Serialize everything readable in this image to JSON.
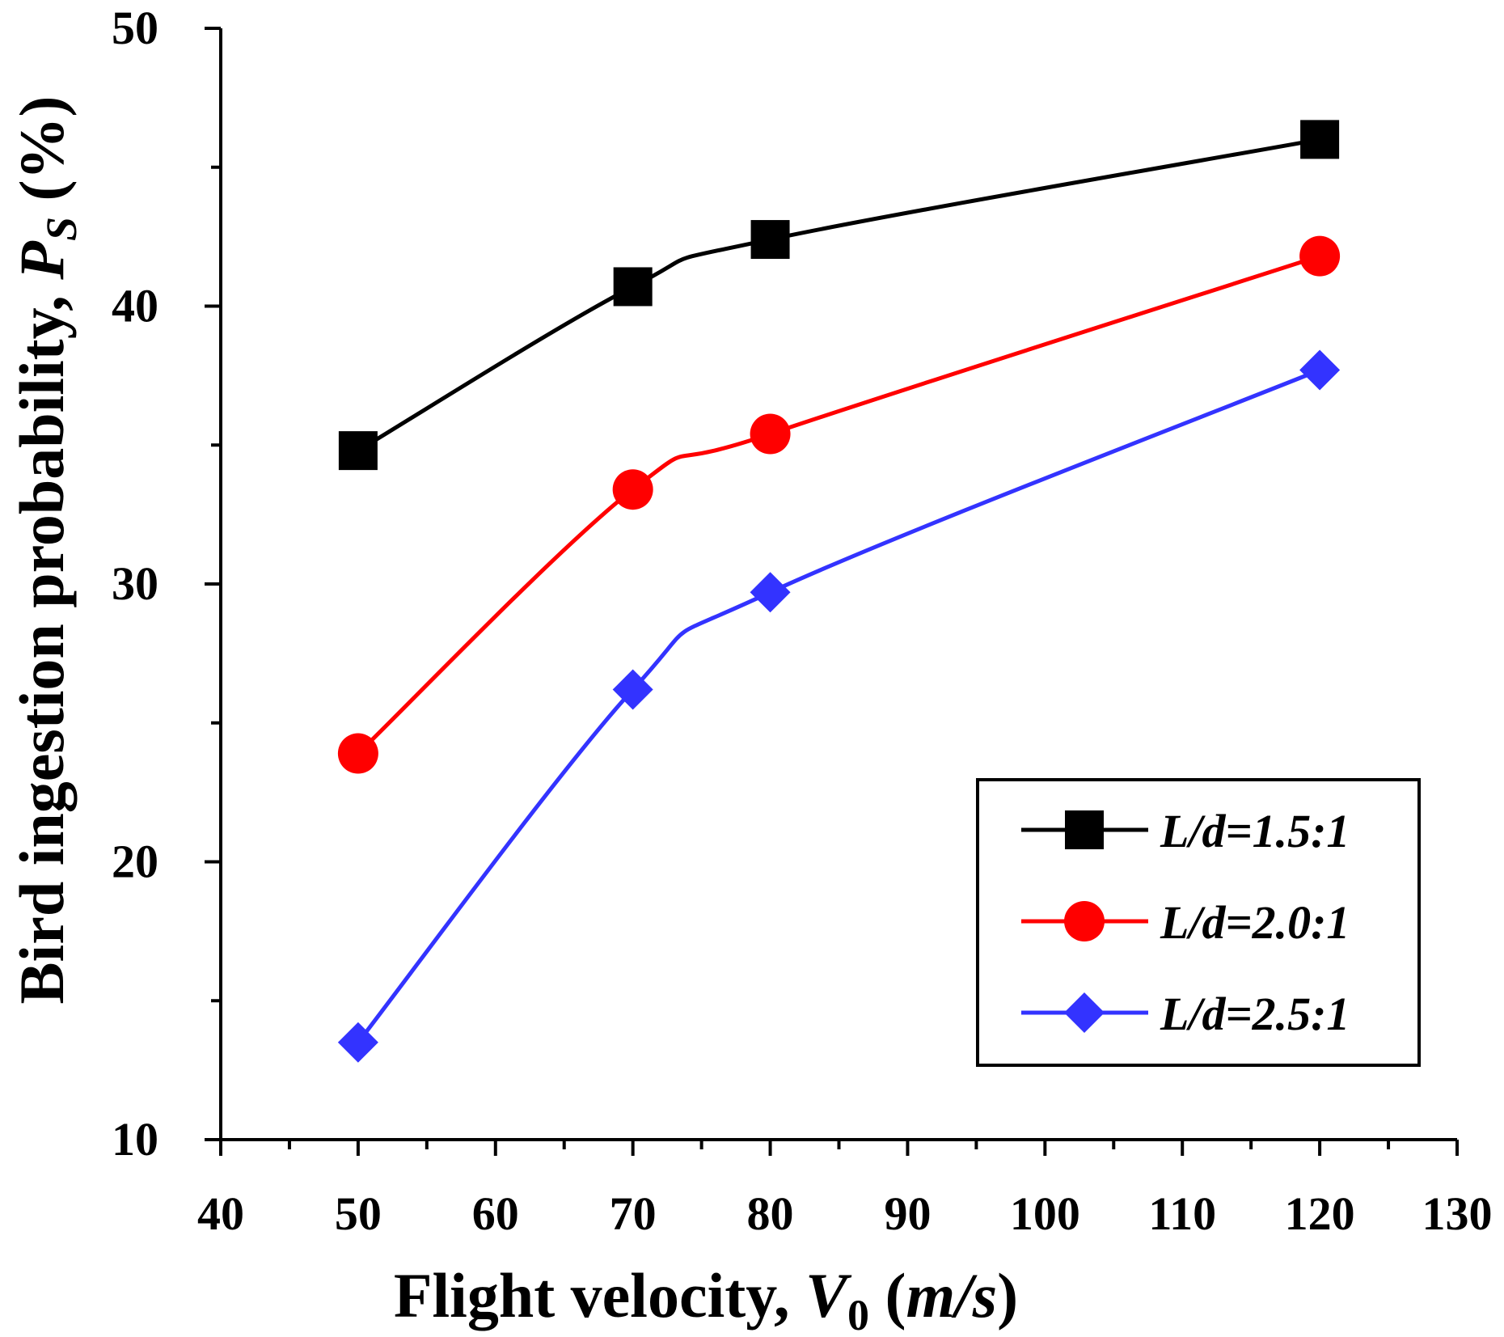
{
  "chart_data": {
    "type": "line",
    "title": "",
    "x": [
      50,
      70,
      80,
      120
    ],
    "series": [
      {
        "name": "L/d=1.5:1",
        "color": "#000000",
        "marker": "square",
        "values": [
          34.8,
          40.7,
          42.4,
          46.0
        ]
      },
      {
        "name": "L/d=2.0:1",
        "color": "#ff0000",
        "marker": "circle",
        "values": [
          23.9,
          33.4,
          35.4,
          41.8
        ]
      },
      {
        "name": "L/d=2.5:1",
        "color": "#3333ff",
        "marker": "diamond",
        "values": [
          13.5,
          26.2,
          29.7,
          37.7
        ]
      }
    ],
    "xlim": [
      40,
      130
    ],
    "ylim": [
      10,
      50
    ],
    "x_major_ticks": [
      40,
      50,
      60,
      70,
      80,
      90,
      100,
      110,
      120,
      130
    ],
    "x_minor_step": 5,
    "y_major_ticks": [
      10,
      20,
      30,
      40,
      50
    ],
    "y_minor_step": 5,
    "xlabel": {
      "main": "Flight velocity, ",
      "var": "V",
      "sub": "0",
      "open": " (",
      "unit": "m/s",
      "close": ")"
    },
    "ylabel": {
      "main": "Bird ingestion probability, ",
      "var": "P",
      "sub": "S",
      "unit": " (%)"
    },
    "legend_position": "bottom-right",
    "grid": false
  }
}
